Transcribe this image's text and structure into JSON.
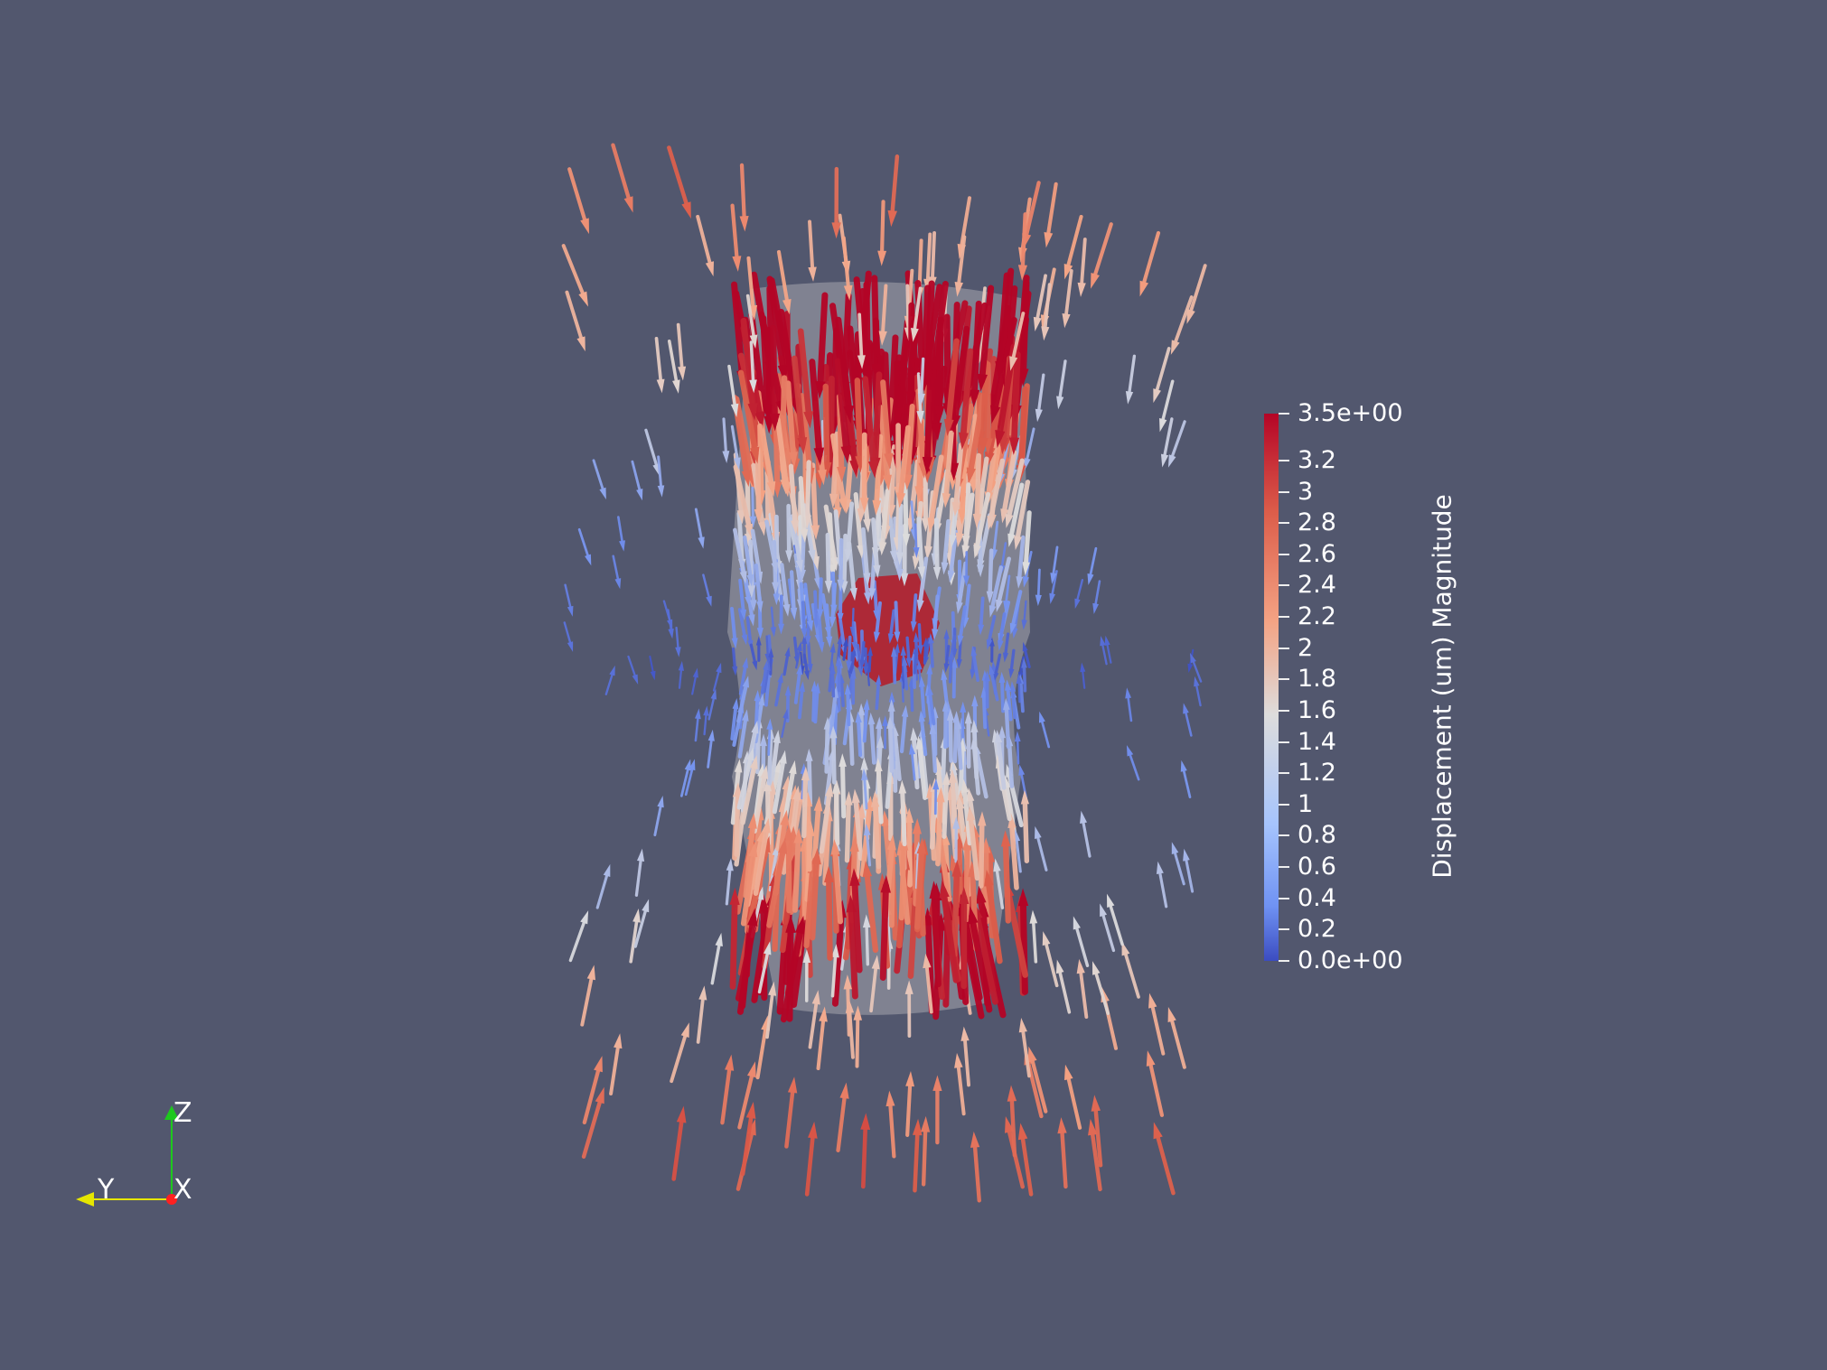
{
  "colorbar": {
    "title": "Displacement (um) Magnitude",
    "max_label": "3.5e+00",
    "min_label": "0.0e+00",
    "range": [
      0,
      3.5
    ],
    "ticks": [
      {
        "value": 3.5,
        "label": "3.5e+00"
      },
      {
        "value": 3.2,
        "label": "3.2"
      },
      {
        "value": 3.0,
        "label": "3"
      },
      {
        "value": 2.8,
        "label": "2.8"
      },
      {
        "value": 2.6,
        "label": "2.6"
      },
      {
        "value": 2.4,
        "label": "2.4"
      },
      {
        "value": 2.2,
        "label": "2.2"
      },
      {
        "value": 2.0,
        "label": "2"
      },
      {
        "value": 1.8,
        "label": "1.8"
      },
      {
        "value": 1.6,
        "label": "1.6"
      },
      {
        "value": 1.4,
        "label": "1.4"
      },
      {
        "value": 1.2,
        "label": "1.2"
      },
      {
        "value": 1.0,
        "label": "1"
      },
      {
        "value": 0.8,
        "label": "0.8"
      },
      {
        "value": 0.6,
        "label": "0.6"
      },
      {
        "value": 0.4,
        "label": "0.4"
      },
      {
        "value": 0.2,
        "label": "0.2"
      },
      {
        "value": 0.0,
        "label": "0.0e+00"
      }
    ],
    "colors": {
      "high": "#b40426",
      "mid": "#dddcdc",
      "low": "#3b4cc0"
    }
  },
  "orientation_axes": {
    "z_label": "Z",
    "y_label": "Y",
    "x_label": "X",
    "z_color": "#1ec81e",
    "y_color": "#e6e600",
    "x_color": "#ff2020"
  },
  "background_color": "#52576e"
}
